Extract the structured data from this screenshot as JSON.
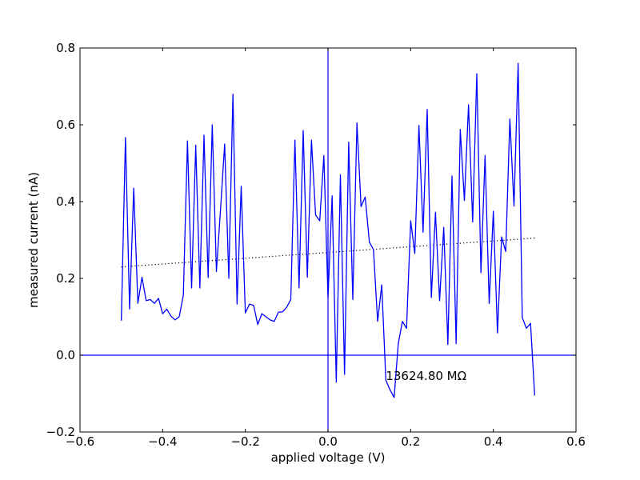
{
  "chart_data": {
    "type": "line",
    "xlabel": "applied voltage (V)",
    "ylabel": "measured current (nA)",
    "xlim": [
      -0.6,
      0.6
    ],
    "ylim": [
      -0.2,
      0.8
    ],
    "xticks": [
      "−0.6",
      "−0.4",
      "−0.2",
      "0.0",
      "0.2",
      "0.4",
      "0.6"
    ],
    "yticks": [
      "−0.2",
      "0.0",
      "0.2",
      "0.4",
      "0.6",
      "0.8"
    ],
    "grid": false,
    "annotation": {
      "text": "13624.80 MΩ",
      "x": 0.14,
      "y": -0.065
    },
    "reference_lines": {
      "horizontal_y": 0.0,
      "vertical_x": 0.0
    },
    "line_color": "#0000ff",
    "fit_line": {
      "color": "#000000",
      "style": "dotted",
      "x": [
        -0.5,
        0.5
      ],
      "y": [
        0.23,
        0.305
      ]
    },
    "series": [
      {
        "x": [
          -0.5,
          -0.49,
          -0.48,
          -0.47,
          -0.46,
          -0.45,
          -0.44,
          -0.43,
          -0.42,
          -0.41,
          -0.4,
          -0.39,
          -0.38,
          -0.37,
          -0.36,
          -0.35,
          -0.34,
          -0.33,
          -0.32,
          -0.31,
          -0.3,
          -0.29,
          -0.28,
          -0.27,
          -0.26,
          -0.25,
          -0.24,
          -0.23,
          -0.22,
          -0.21,
          -0.2,
          -0.19,
          -0.18,
          -0.17,
          -0.16,
          -0.15,
          -0.14,
          -0.13,
          -0.12,
          -0.11,
          -0.1,
          -0.09,
          -0.08,
          -0.07,
          -0.06,
          -0.05,
          -0.04,
          -0.03,
          -0.02,
          -0.01,
          0.0,
          0.01,
          0.02,
          0.03,
          0.04,
          0.05,
          0.06,
          0.07,
          0.08,
          0.09,
          0.1,
          0.11,
          0.12,
          0.13,
          0.14,
          0.15,
          0.16,
          0.17,
          0.18,
          0.19,
          0.2,
          0.21,
          0.22,
          0.23,
          0.24,
          0.25,
          0.26,
          0.27,
          0.28,
          0.29,
          0.3,
          0.31,
          0.32,
          0.33,
          0.34,
          0.35,
          0.36,
          0.37,
          0.38,
          0.39,
          0.4,
          0.41,
          0.42,
          0.43,
          0.44,
          0.45,
          0.46,
          0.47,
          0.48,
          0.49,
          0.5
        ],
        "y": [
          0.09,
          0.567,
          0.12,
          0.435,
          0.135,
          0.203,
          0.142,
          0.145,
          0.135,
          0.148,
          0.108,
          0.12,
          0.102,
          0.092,
          0.1,
          0.156,
          0.558,
          0.175,
          0.547,
          0.175,
          0.573,
          0.202,
          0.6,
          0.218,
          0.38,
          0.55,
          0.2,
          0.68,
          0.133,
          0.44,
          0.11,
          0.133,
          0.13,
          0.08,
          0.108,
          0.1,
          0.092,
          0.088,
          0.112,
          0.113,
          0.125,
          0.145,
          0.56,
          0.175,
          0.585,
          0.203,
          0.56,
          0.365,
          0.35,
          0.52,
          0.15,
          0.415,
          -0.07,
          0.47,
          -0.05,
          0.555,
          0.145,
          0.605,
          0.387,
          0.412,
          0.295,
          0.275,
          0.088,
          0.183,
          -0.065,
          -0.09,
          -0.11,
          0.03,
          0.088,
          0.07,
          0.35,
          0.265,
          0.598,
          0.32,
          0.64,
          0.15,
          0.372,
          0.142,
          0.333,
          0.028,
          0.467,
          0.03,
          0.588,
          0.403,
          0.652,
          0.347,
          0.733,
          0.215,
          0.52,
          0.135,
          0.375,
          0.058,
          0.308,
          0.27,
          0.615,
          0.388,
          0.76,
          0.098,
          0.07,
          0.083,
          -0.105
        ]
      }
    ]
  }
}
